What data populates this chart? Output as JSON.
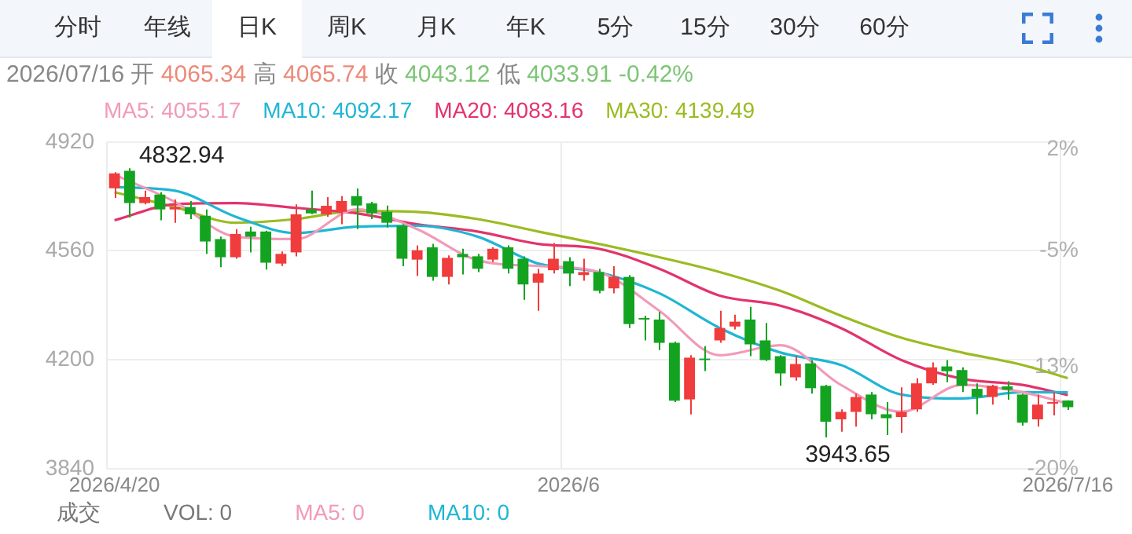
{
  "chart_data": {
    "type": "candlestick",
    "title": "2026/07/16 开 4065.34 高 4065.74 收 4043.12 低 4033.91 -0.42%",
    "subtitle": "成交  VOL: 0  MA5: 0  MA10: 0",
    "annotations": [
      "分时",
      "年线",
      "日K",
      "周K",
      "月K",
      "年K",
      "5分",
      "15分",
      "30分",
      "60分",
      "4832.94",
      "3943.65"
    ],
    "categories": [
      "2026/4/20",
      null,
      null,
      null,
      null,
      null,
      null,
      null,
      null,
      null,
      null,
      null,
      null,
      null,
      null,
      null,
      null,
      null,
      null,
      null,
      null,
      null,
      null,
      null,
      null,
      null,
      null,
      null,
      null,
      null,
      "2026/6",
      null,
      null,
      null,
      null,
      null,
      null,
      null,
      null,
      null,
      null,
      null,
      null,
      null,
      null,
      null,
      null,
      null,
      null,
      null,
      null,
      null,
      null,
      null,
      null,
      null,
      null,
      null,
      null,
      null,
      null,
      null,
      null,
      "2026/7/16"
    ],
    "ohlc": [
      [
        4767,
        4820,
        4735,
        4816
      ],
      [
        4825,
        4832.94,
        4670,
        4718
      ],
      [
        4718,
        4759,
        4714,
        4738
      ],
      [
        4746,
        4754,
        4661,
        4697
      ],
      [
        4697,
        4730,
        4653,
        4705
      ],
      [
        4705,
        4725,
        4665,
        4681
      ],
      [
        4676,
        4697,
        4550,
        4591
      ],
      [
        4599,
        4607,
        4506,
        4539
      ],
      [
        4539,
        4632,
        4534,
        4616
      ],
      [
        4624,
        4640,
        4555,
        4607
      ],
      [
        4624,
        4627,
        4498,
        4521
      ],
      [
        4518,
        4558,
        4510,
        4550
      ],
      [
        4555,
        4714,
        4542,
        4681
      ],
      [
        4697,
        4759,
        4681,
        4684
      ],
      [
        4681,
        4738,
        4673,
        4709
      ],
      [
        4689,
        4741,
        4648,
        4725
      ],
      [
        4741,
        4766,
        4632,
        4710
      ],
      [
        4717,
        4722,
        4665,
        4684
      ],
      [
        4689,
        4710,
        4637,
        4653
      ],
      [
        4643,
        4648,
        4509,
        4534
      ],
      [
        4531,
        4578,
        4477,
        4562
      ],
      [
        4572,
        4583,
        4461,
        4474
      ],
      [
        4474,
        4545,
        4449,
        4537
      ],
      [
        4550,
        4567,
        4482,
        4539
      ],
      [
        4542,
        4550,
        4490,
        4501
      ],
      [
        4531,
        4572,
        4523,
        4567
      ],
      [
        4572,
        4578,
        4485,
        4501
      ],
      [
        4534,
        4542,
        4398,
        4449
      ],
      [
        4455,
        4501,
        4362,
        4485
      ],
      [
        4496,
        4586,
        4485,
        4534
      ],
      [
        4526,
        4539,
        4444,
        4485
      ],
      [
        4480,
        4534,
        4461,
        4490
      ],
      [
        4490,
        4501,
        4420,
        4428
      ],
      [
        4436,
        4509,
        4420,
        4474
      ],
      [
        4474,
        4480,
        4305,
        4318
      ],
      [
        4338,
        4346,
        4264,
        4333
      ],
      [
        4333,
        4358,
        4232,
        4256
      ],
      [
        4256,
        4260,
        4060,
        4065
      ],
      [
        4069,
        4215,
        4019,
        4207
      ],
      [
        4204,
        4245,
        4163,
        4199
      ],
      [
        4264,
        4362,
        4256,
        4305
      ],
      [
        4310,
        4349,
        4300,
        4326
      ],
      [
        4333,
        4375,
        4212,
        4251
      ],
      [
        4264,
        4322,
        4196,
        4199
      ],
      [
        4212,
        4215,
        4114,
        4155
      ],
      [
        4142,
        4212,
        4131,
        4186
      ],
      [
        4188,
        4199,
        4088,
        4106
      ],
      [
        4114,
        4117,
        3943.65,
        3995
      ],
      [
        4003,
        4036,
        3962,
        4028
      ],
      [
        4028,
        4088,
        3979,
        4077
      ],
      [
        4085,
        4093,
        4003,
        4020
      ],
      [
        4020,
        4060,
        3951,
        4007
      ],
      [
        4011,
        4109,
        3958,
        4028
      ],
      [
        4036,
        4139,
        4028,
        4122
      ],
      [
        4122,
        4191,
        4117,
        4175
      ],
      [
        4178,
        4199,
        4126,
        4162
      ],
      [
        4166,
        4175,
        4093,
        4114
      ],
      [
        4104,
        4122,
        4020,
        4077
      ],
      [
        4077,
        4117,
        4052,
        4114
      ],
      [
        4112,
        4129,
        4068,
        4101
      ],
      [
        4085,
        4088,
        3982,
        3992
      ],
      [
        4003,
        4085,
        3979,
        4052
      ],
      [
        4055,
        4093,
        4016,
        4060
      ],
      [
        4065.34,
        4065.74,
        4033.91,
        4043.12
      ]
    ],
    "colors": [
      "#f03c3c",
      "#13a321",
      "#f03c3c",
      "#13a321",
      "#f03c3c",
      "#13a321",
      "#13a321",
      "#13a321",
      "#f03c3c",
      "#13a321",
      "#13a321",
      "#f03c3c",
      "#f03c3c",
      "#13a321",
      "#f03c3c",
      "#f03c3c",
      "#13a321",
      "#13a321",
      "#13a321",
      "#13a321",
      "#f03c3c",
      "#13a321",
      "#f03c3c",
      "#13a321",
      "#13a321",
      "#f03c3c",
      "#13a321",
      "#13a321",
      "#f03c3c",
      "#f03c3c",
      "#13a321",
      "#f03c3c",
      "#13a321",
      "#f03c3c",
      "#13a321",
      "#13a321",
      "#13a321",
      "#13a321",
      "#f03c3c",
      "#13a321",
      "#f03c3c",
      "#f03c3c",
      "#13a321",
      "#13a321",
      "#13a321",
      "#f03c3c",
      "#13a321",
      "#13a321",
      "#f03c3c",
      "#f03c3c",
      "#13a321",
      "#13a321",
      "#f03c3c",
      "#f03c3c",
      "#f03c3c",
      "#13a321",
      "#13a321",
      "#13a321",
      "#f03c3c",
      "#13a321",
      "#13a321",
      "#f03c3c",
      "#f03c3c",
      "#13a321"
    ],
    "series": [
      {
        "type": "line",
        "name": "MA5: 4055.17",
        "color": "#f29ab9",
        "values": [
          4812,
          null,
          null,
          null,
          4722,
          null,
          null,
          null,
          4607,
          null,
          null,
          null,
          4599,
          null,
          null,
          null,
          4697,
          null,
          null,
          null,
          4632,
          null,
          null,
          null,
          4529,
          null,
          null,
          null,
          4510,
          null,
          null,
          null,
          4490,
          null,
          null,
          null,
          4362,
          null,
          null,
          null,
          4215,
          null,
          null,
          null,
          4248,
          null,
          null,
          null,
          4117,
          null,
          null,
          null,
          4028,
          null,
          null,
          null,
          4117,
          null,
          null,
          null,
          4093,
          null,
          null,
          4055.17
        ]
      },
      {
        "type": "line",
        "name": "MA10: 4092.17",
        "color": "#1fb6d3",
        "values": [
          4771,
          null,
          null,
          null,
          4759,
          null,
          null,
          null,
          4673,
          null,
          null,
          null,
          4619,
          null,
          null,
          null,
          4640,
          null,
          null,
          null,
          4643,
          null,
          null,
          null,
          4607,
          null,
          null,
          null,
          4518,
          null,
          null,
          null,
          4490,
          null,
          null,
          null,
          4420,
          null,
          null,
          null,
          4305,
          null,
          null,
          null,
          4224,
          null,
          null,
          null,
          4183,
          null,
          null,
          null,
          4085,
          null,
          null,
          null,
          4072,
          null,
          null,
          null,
          4093,
          null,
          null,
          4092.17
        ]
      },
      {
        "type": "line",
        "name": "MA20: 4083.16",
        "color": "#e3336b",
        "values": [
          4661,
          null,
          null,
          null,
          4714,
          null,
          null,
          null,
          4718,
          null,
          null,
          null,
          4702,
          null,
          null,
          null,
          4684,
          null,
          null,
          null,
          4648,
          null,
          null,
          null,
          4624,
          null,
          null,
          null,
          4583,
          null,
          null,
          null,
          4567,
          null,
          null,
          null,
          4501,
          null,
          null,
          null,
          4412,
          null,
          null,
          null,
          4379,
          null,
          null,
          null,
          4305,
          null,
          null,
          null,
          4199,
          null,
          null,
          null,
          4137,
          null,
          null,
          null,
          4117,
          null,
          null,
          4083.16
        ]
      },
      {
        "type": "line",
        "name": "MA30: 4139.49",
        "color": "#9bbb22",
        "values": [
          4754,
          null,
          null,
          null,
          4705,
          null,
          null,
          null,
          4653,
          null,
          null,
          null,
          4665,
          null,
          null,
          null,
          4692,
          null,
          null,
          null,
          4689,
          null,
          null,
          null,
          4665,
          null,
          null,
          null,
          4624,
          null,
          null,
          null,
          4583,
          null,
          null,
          null,
          4539,
          null,
          null,
          null,
          4490,
          null,
          null,
          null,
          4428,
          null,
          null,
          null,
          4346,
          null,
          null,
          null,
          4273,
          null,
          null,
          null,
          4224,
          null,
          null,
          null,
          4183,
          null,
          null,
          4139.49
        ]
      }
    ],
    "ylim": [
      3840,
      4920
    ],
    "yticks": [
      3840,
      4200,
      4560,
      4920
    ],
    "y2lim": [
      -20,
      2.5
    ],
    "y2ticks": [
      {
        "value": 2,
        "label": "2%"
      },
      {
        "value": -5,
        "label": "-5%"
      },
      {
        "value": -13,
        "label": "-13%"
      },
      {
        "value": -20,
        "label": "-20%"
      }
    ],
    "grid": true,
    "legend": "top left",
    "marker": "none",
    "line_style": "solid"
  }
}
